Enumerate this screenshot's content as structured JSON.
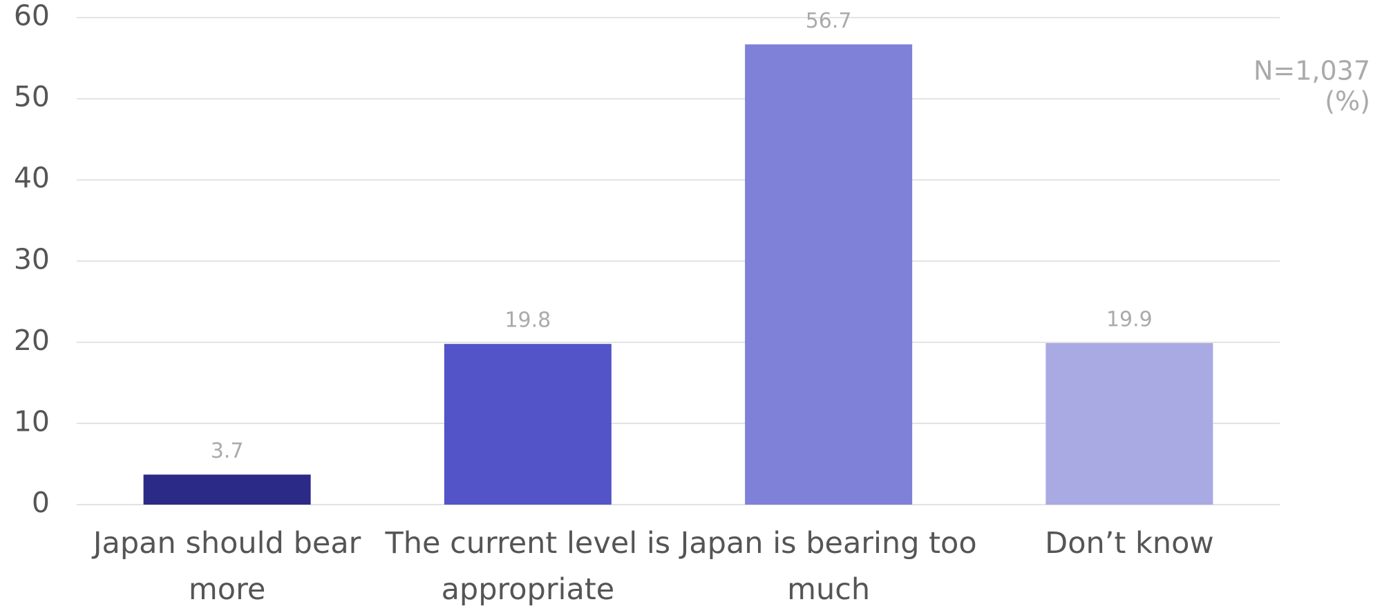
{
  "chart_data": {
    "type": "bar",
    "categories": [
      "Japan should bear more",
      "The current level is appropriate",
      "Japan is bearing too much",
      "Don’t know"
    ],
    "values": [
      3.7,
      19.8,
      56.7,
      19.9
    ],
    "colors": [
      "#2b2a87",
      "#5254c8",
      "#7f80d8",
      "#a9a9e3"
    ],
    "ylim": [
      0,
      60
    ],
    "yticks": [
      0,
      10,
      20,
      30,
      40,
      50,
      60
    ],
    "grid": true,
    "annotations": [
      "N=1,037",
      "(%)"
    ]
  }
}
